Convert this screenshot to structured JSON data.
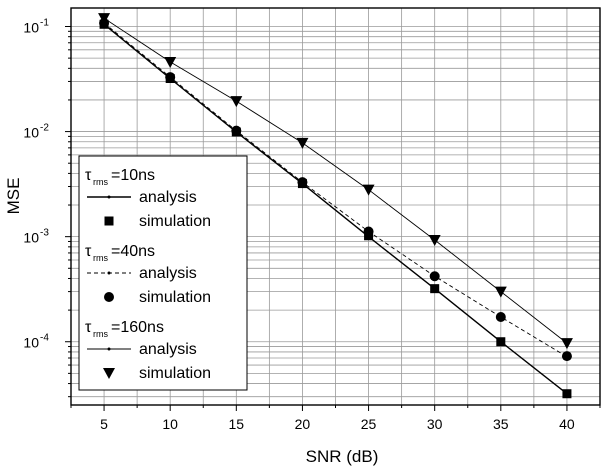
{
  "chart_data": {
    "type": "line",
    "xlabel": "SNR (dB)",
    "ylabel": "MSE",
    "x_ticks": [
      5,
      10,
      15,
      20,
      25,
      30,
      35,
      40
    ],
    "xlim": [
      2.5,
      42.5
    ],
    "ylim": [
      2.5e-05,
      0.15
    ],
    "y_scale": "log",
    "y_ticks": [
      {
        "value": 0.1,
        "mantissa": "10",
        "exponent": "-1"
      },
      {
        "value": 0.01,
        "mantissa": "10",
        "exponent": "-2"
      },
      {
        "value": 0.001,
        "mantissa": "10",
        "exponent": "-3"
      },
      {
        "value": 0.0001,
        "mantissa": "10",
        "exponent": "-4"
      }
    ],
    "grid": true,
    "legend_position": "bottom-left",
    "groups": [
      {
        "tau_symbol": "τ",
        "tau_sub": "rms",
        "tau_value": "=10ns",
        "analysis_label": "analysis",
        "simulation_label": "simulation",
        "line_style": "solid",
        "marker": "square",
        "x": [
          5,
          10,
          15,
          20,
          25,
          30,
          35,
          40
        ],
        "analysis": [
          0.105,
          0.032,
          0.0099,
          0.0032,
          0.001,
          0.00032,
          0.0001,
          3.2e-05
        ],
        "simulation": [
          0.105,
          0.032,
          0.0099,
          0.0032,
          0.00102,
          0.00032,
          0.0001,
          3.2e-05
        ]
      },
      {
        "tau_symbol": "τ",
        "tau_sub": "rms",
        "tau_value": "=40ns",
        "analysis_label": "analysis",
        "simulation_label": "simulation",
        "line_style": "dashed",
        "marker": "circle",
        "x": [
          5,
          10,
          15,
          20,
          25,
          30,
          35,
          40
        ],
        "analysis": [
          0.108,
          0.033,
          0.0102,
          0.0033,
          0.00112,
          0.00042,
          0.000172,
          7.2e-05
        ],
        "simulation": [
          0.108,
          0.033,
          0.0102,
          0.0033,
          0.00112,
          0.00042,
          0.000172,
          7.3e-05
        ]
      },
      {
        "tau_symbol": "τ",
        "tau_sub": "rms",
        "tau_value": "=160ns",
        "analysis_label": "analysis",
        "simulation_label": "simulation",
        "line_style": "thin",
        "marker": "triangle-down",
        "x": [
          5,
          10,
          15,
          20,
          25,
          30,
          35,
          40
        ],
        "analysis": [
          0.12,
          0.046,
          0.0195,
          0.0078,
          0.0028,
          0.00093,
          0.0003,
          9.7e-05
        ],
        "simulation": [
          0.12,
          0.046,
          0.0195,
          0.0078,
          0.0028,
          0.00093,
          0.0003,
          9.7e-05
        ]
      }
    ]
  }
}
